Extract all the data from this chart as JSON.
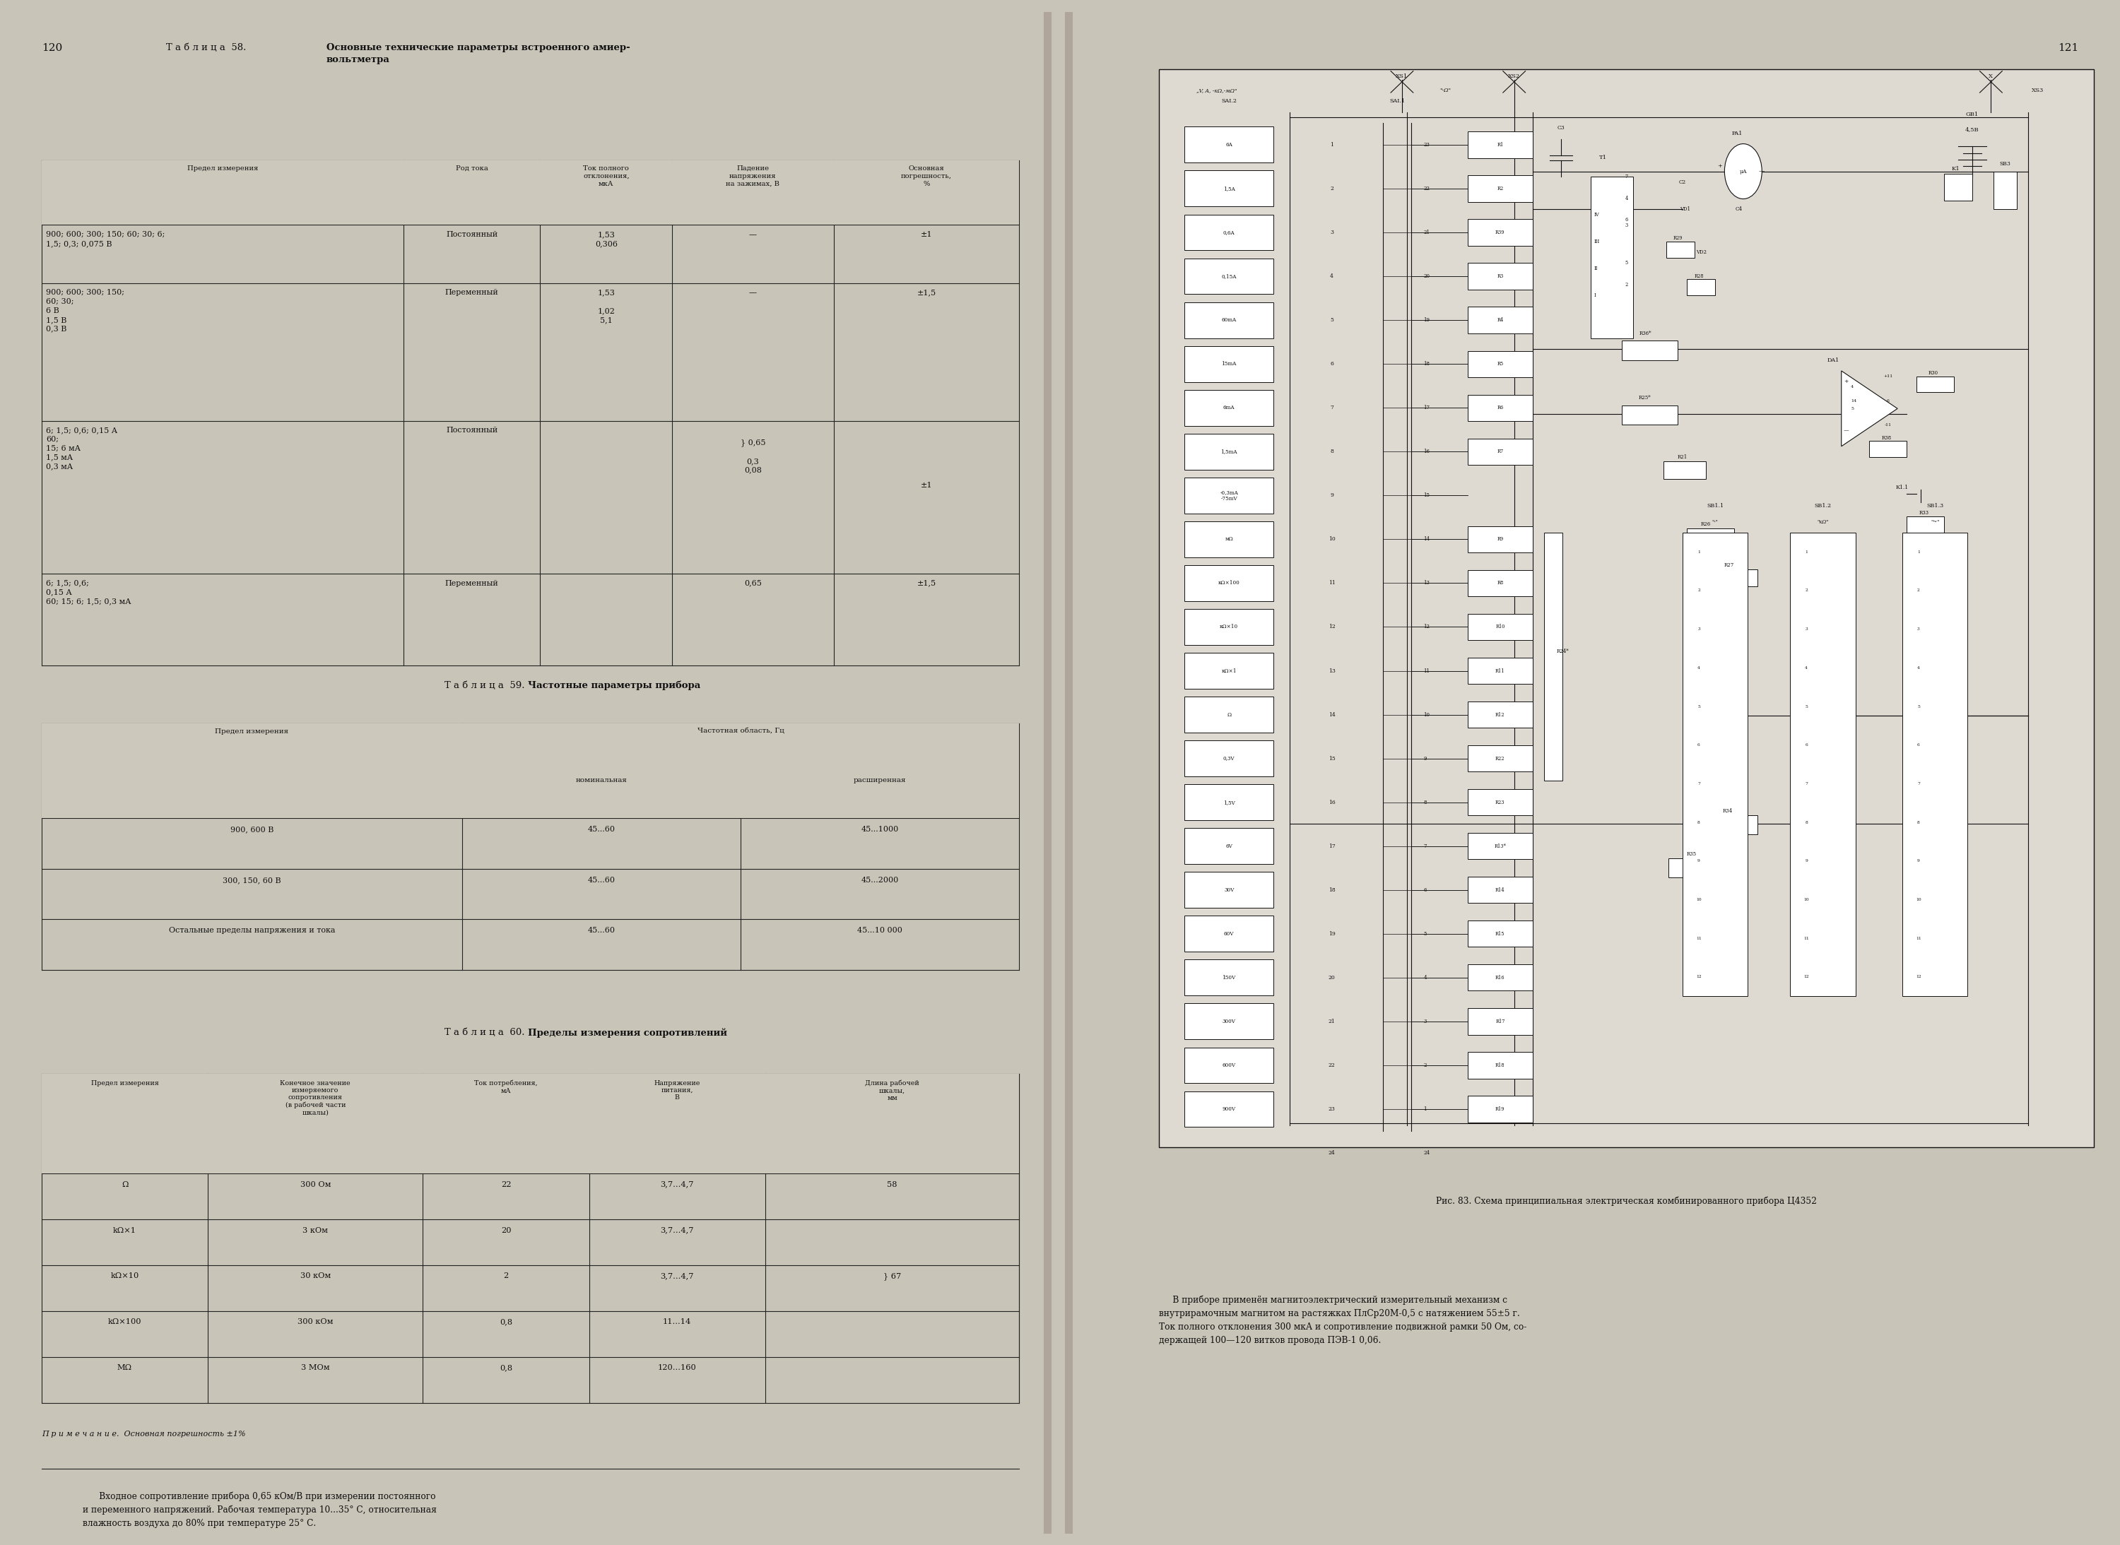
{
  "bg_color": "#c8c4b8",
  "page_bg_left": "#e0ddd4",
  "page_bg_right": "#dedad2",
  "left_page_num": "120",
  "right_page_num": "121",
  "title58_normal": "Т а б л и ц а  58. ",
  "title58_bold": "Основные технические параметры встроенного амиер-\nвольтметра",
  "title59_normal": "Т а б л и ц а  59. ",
  "title59_bold": "Частотные параметры прибора",
  "title60_normal": "Т а б л и ц а  60. ",
  "title60_bold": "Пределы измерения сопротивлений",
  "note60": "П р и м е ч а н и е.  Основная погрешность ±1%",
  "bottom_text_left": "      Входное сопротивление прибора 0,65 кОм/В при измерении постоянного\nи переменного напряжений. Рабочая температура 10...35° С, относительная\nвлажность воздуха до 80% при температуре 25° С.",
  "fig_caption": "Рис. 83. Схема принципиальная электрическая комбинированного прибора Ц4352",
  "bottom_text_right": "     В приборе применён магнитоэлектрический измерительный механизм с\nвнутрирамочным магнитом на растяжках ПлСр20М-0,5 с натяжением 55±5 г.\nТок полного отклонения 300 мкА и сопротивление подвижной рамки 50 Ом, со-\nдержащей 100—120 витков провода ПЭВ-1 0,06.",
  "header_bg": "#ccc8bc",
  "text_color": "#111111",
  "line_color": "#222222"
}
